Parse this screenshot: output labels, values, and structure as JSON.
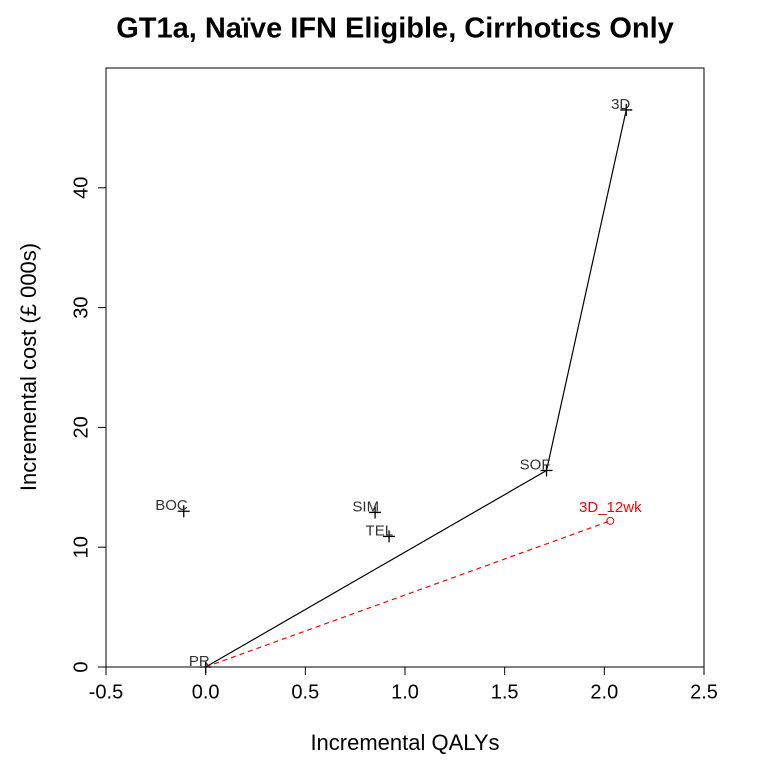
{
  "chart_data": {
    "type": "scatter",
    "title": "GT1a, Naïve IFN Eligible, Cirrhotics Only",
    "x_label": "Incremental QALYs",
    "y_label": "Incremental cost (£ 000s)",
    "xlim": [
      -0.5,
      2.5
    ],
    "ylim": [
      0,
      50
    ],
    "xticks": [
      -0.5,
      {
        "value": 0,
        "label": "0.0"
      },
      0.5,
      {
        "value": 1,
        "label": "1.0"
      },
      1.5,
      {
        "value": 2,
        "label": "2.0"
      },
      2.5
    ],
    "yticks": [
      0,
      10,
      20,
      30,
      40
    ],
    "series": [
      {
        "labels": [
          "PR",
          "BOC",
          "SIM",
          "TEL",
          "SOF",
          "3D"
        ],
        "x": [
          0,
          -0.11,
          0.85,
          0.92,
          1.71,
          2.11
        ],
        "y": [
          0,
          13.0,
          12.9,
          10.9,
          16.4,
          46.5
        ],
        "color": "#000000",
        "marker": "+"
      },
      {
        "labels": [
          "3D_12wk"
        ],
        "x": [
          2.03
        ],
        "y": [
          12.2
        ],
        "color": "#ff0000",
        "marker": "o"
      }
    ],
    "lines": [
      {
        "x": [
          0,
          1.71,
          2.11
        ],
        "y": [
          0,
          16.4,
          46.5
        ],
        "color": "#000000",
        "dashed": false
      },
      {
        "x": [
          0,
          2.03
        ],
        "y": [
          0,
          12.2
        ],
        "color": "#ff0000",
        "dashed": true
      }
    ]
  }
}
